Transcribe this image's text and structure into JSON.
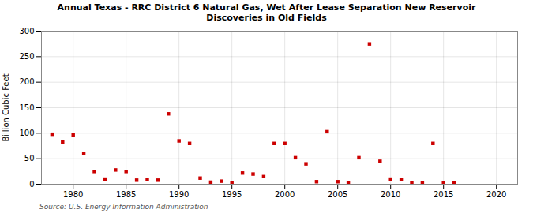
{
  "chart_data": {
    "type": "scatter",
    "title": "Annual Texas - RRC District 6 Natural Gas, Wet After Lease Separation New Reservoir\nDiscoveries in Old Fields",
    "ylabel": "Billion Cubic Feet",
    "source": "Source: U.S. Energy Information Administration",
    "color": "#cc0000",
    "marker": "square",
    "grid": true,
    "xlim": [
      1977,
      2022
    ],
    "ylim": [
      0,
      300
    ],
    "xticks": [
      1980,
      1985,
      1990,
      1995,
      2000,
      2005,
      2010,
      2015,
      2020
    ],
    "yticks": [
      0,
      50,
      100,
      150,
      200,
      250,
      300
    ],
    "x": [
      1978,
      1979,
      1980,
      1981,
      1982,
      1983,
      1984,
      1985,
      1986,
      1987,
      1988,
      1989,
      1990,
      1991,
      1992,
      1993,
      1994,
      1995,
      1996,
      1997,
      1998,
      1999,
      2000,
      2001,
      2002,
      2003,
      2004,
      2005,
      2006,
      2007,
      2008,
      2009,
      2010,
      2011,
      2012,
      2013,
      2014,
      2015,
      2016
    ],
    "values": [
      98,
      83,
      97,
      60,
      25,
      10,
      28,
      25,
      8,
      9,
      8,
      138,
      85,
      80,
      12,
      4,
      6,
      3,
      22,
      20,
      15,
      80,
      80,
      52,
      40,
      5,
      103,
      5,
      2,
      52,
      275,
      45,
      10,
      9,
      3,
      2,
      80,
      3,
      2
    ]
  }
}
